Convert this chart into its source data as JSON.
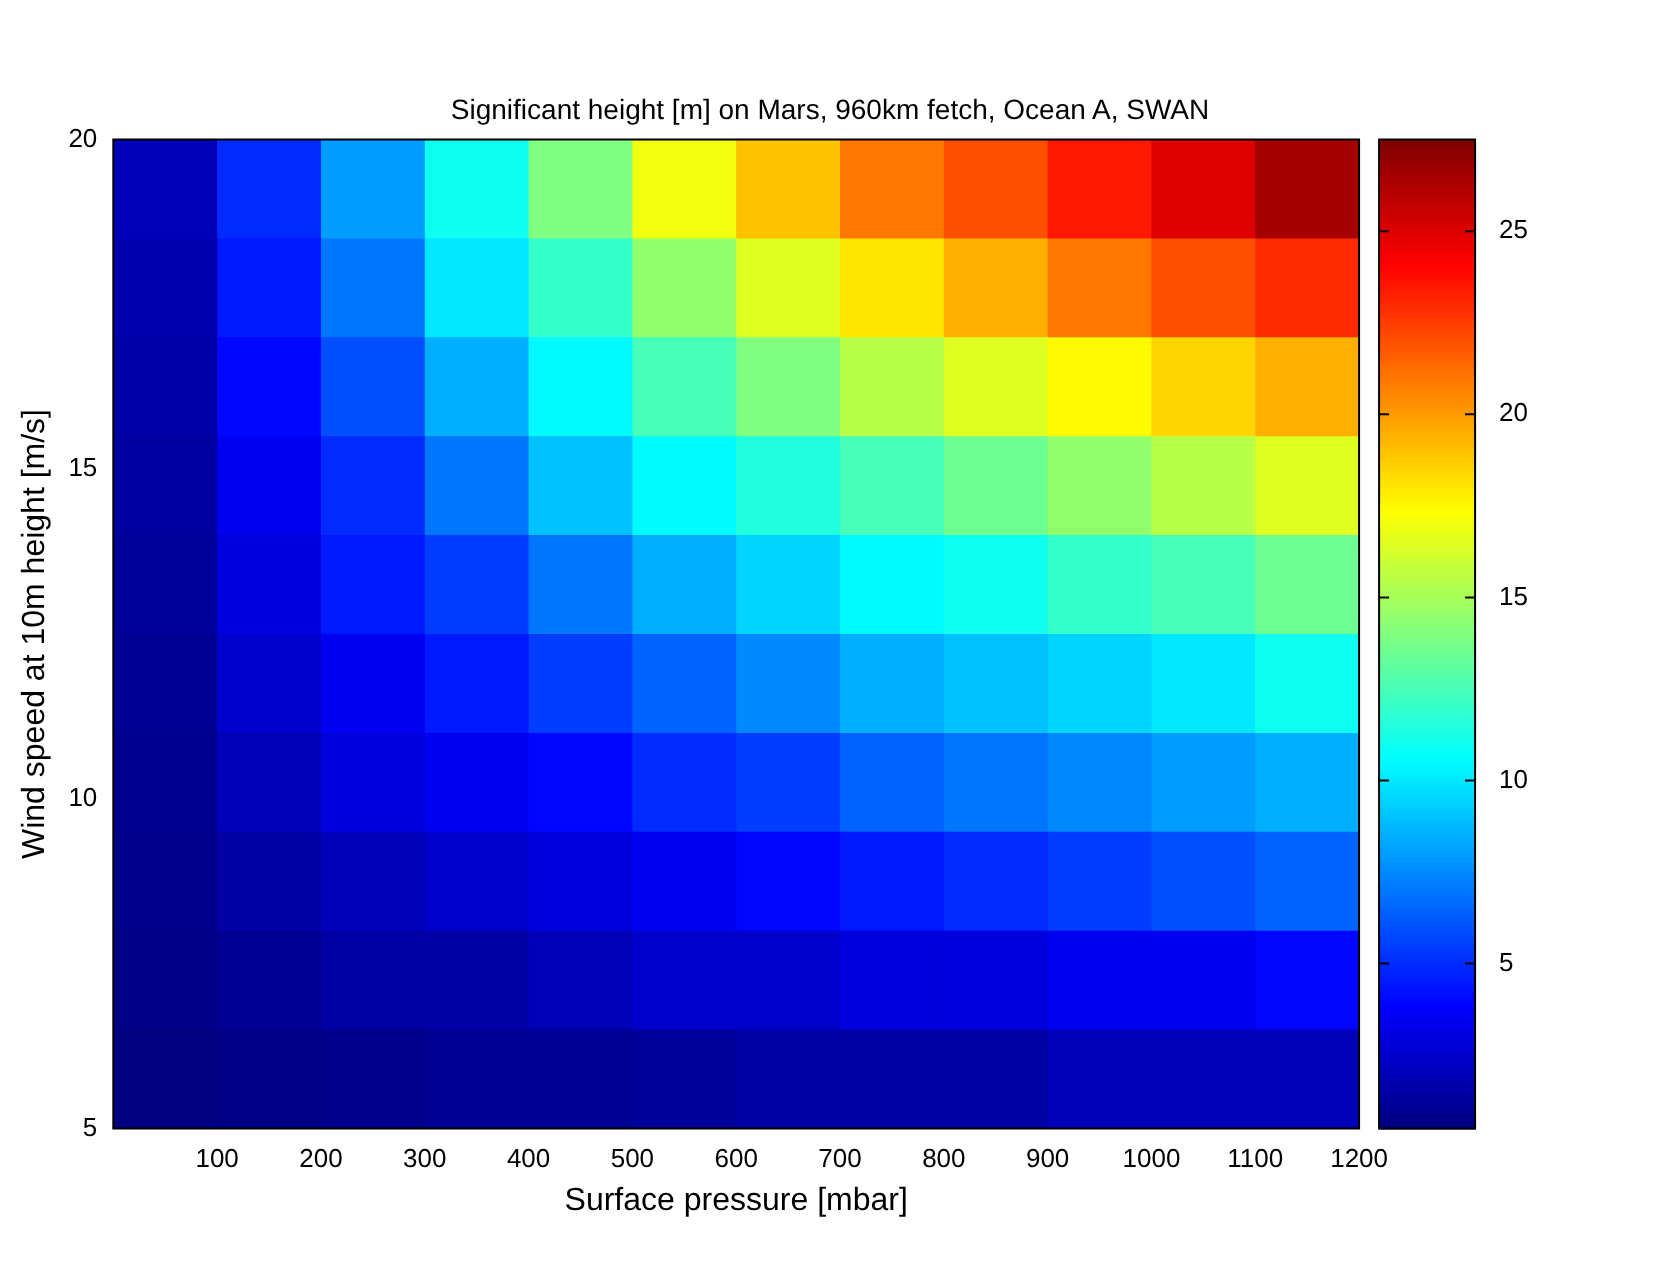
{
  "chart_data": {
    "type": "heatmap",
    "title": "Significant height [m] on Mars, 960km fetch, Ocean A, SWAN",
    "xlabel": "Surface pressure [mbar]",
    "ylabel": "Wind speed at 10m height [m/s]",
    "x": [
      50,
      150,
      250,
      350,
      450,
      550,
      650,
      750,
      850,
      950,
      1050,
      1150
    ],
    "y": [
      19.25,
      17.75,
      16.25,
      14.75,
      13.25,
      11.75,
      10.25,
      8.75,
      7.25,
      5.75
    ],
    "cells": [
      [
        2,
        5,
        8,
        11,
        14,
        17,
        19,
        21,
        22,
        23.5,
        25,
        26.5
      ],
      [
        1.8,
        4.5,
        7,
        10,
        12,
        14.5,
        16.5,
        18,
        19.5,
        21,
        22,
        23
      ],
      [
        1.6,
        4,
        6,
        8.5,
        10.5,
        12.5,
        14,
        15.5,
        16.5,
        17.5,
        18.5,
        19.5
      ],
      [
        1.4,
        3.5,
        5,
        7,
        9,
        10.5,
        11.5,
        12.5,
        13.5,
        14.5,
        15.5,
        16.5
      ],
      [
        1.2,
        3,
        4.5,
        5.5,
        7,
        8.5,
        9.5,
        10.5,
        11,
        12,
        12.5,
        13.5
      ],
      [
        1,
        2.5,
        3.5,
        4.5,
        5.5,
        6.5,
        7.5,
        8.5,
        9,
        9.5,
        10,
        11
      ],
      [
        0.9,
        2,
        3,
        3.5,
        4,
        5,
        5.5,
        6.5,
        7,
        7.5,
        8,
        8.5
      ],
      [
        0.8,
        1.5,
        2,
        2.5,
        3,
        3.5,
        4,
        4.5,
        5,
        5.5,
        6,
        6.5
      ],
      [
        0.7,
        1,
        1.5,
        1.5,
        2,
        2.5,
        2.5,
        3,
        3,
        3.5,
        3.5,
        4
      ],
      [
        0.5,
        0.7,
        0.8,
        1,
        1,
        1.2,
        1.5,
        1.5,
        1.5,
        2,
        2,
        2
      ]
    ],
    "xlim": [
      0,
      1200
    ],
    "xticks": [
      100,
      200,
      300,
      400,
      500,
      600,
      700,
      800,
      900,
      1000,
      1100,
      1200
    ],
    "ylim": [
      5,
      20
    ],
    "yticks": [
      5,
      10,
      15,
      20
    ],
    "clim": [
      0.5,
      27.5
    ],
    "cticks": [
      5,
      10,
      15,
      20,
      25
    ]
  }
}
